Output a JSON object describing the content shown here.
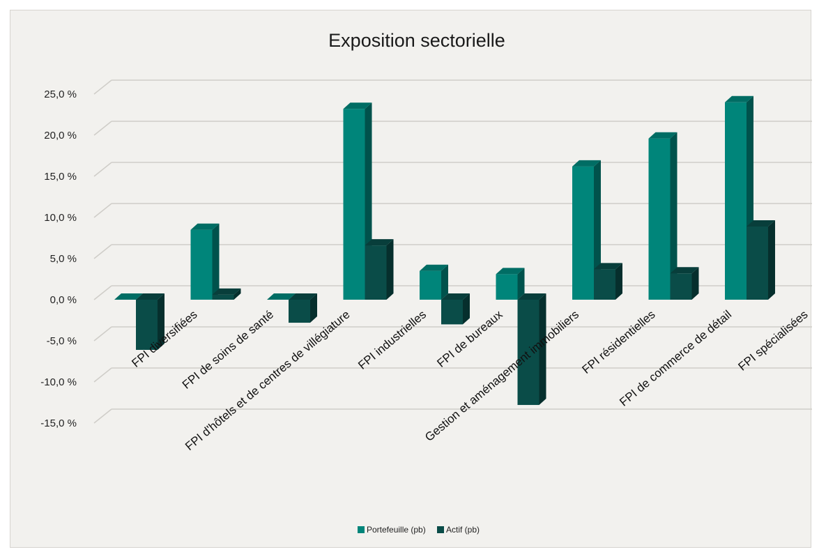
{
  "chart_data": {
    "type": "bar",
    "title": "Exposition sectorielle",
    "xlabel": "",
    "ylabel": "",
    "ylim": [
      -15,
      25
    ],
    "yticks": [
      25,
      20,
      15,
      10,
      5,
      0,
      -5,
      -10,
      -15
    ],
    "ytick_labels": [
      "25,0 %",
      "20,0 %",
      "15,0 %",
      "10,0 %",
      "5,0 %",
      "0,0 %",
      "-5,0 %",
      "-10,0 %",
      "-15,0 %"
    ],
    "grid": true,
    "legend_position": "bottom",
    "categories": [
      "FPI diversifiées",
      "FPI de soins de santé",
      "FPI d'hôtels et de centres de villégiature",
      "FPI industrielles",
      "FPI de bureaux",
      "Gestion et aménagement immobiliers",
      "FPI résidentielles",
      "FPI de commerce de détail",
      "FPI spécialisées"
    ],
    "series": [
      {
        "name": "Portefeuille (pb)",
        "color": "#00857a",
        "values": [
          0,
          8.5,
          0,
          23.2,
          3.5,
          3.1,
          16.2,
          19.6,
          24.0
        ]
      },
      {
        "name": "Actif (pb)",
        "color": "#0a4c48",
        "values": [
          -6.1,
          0.6,
          -2.8,
          6.6,
          -3.0,
          -12.8,
          3.7,
          3.2,
          8.9
        ]
      }
    ]
  }
}
